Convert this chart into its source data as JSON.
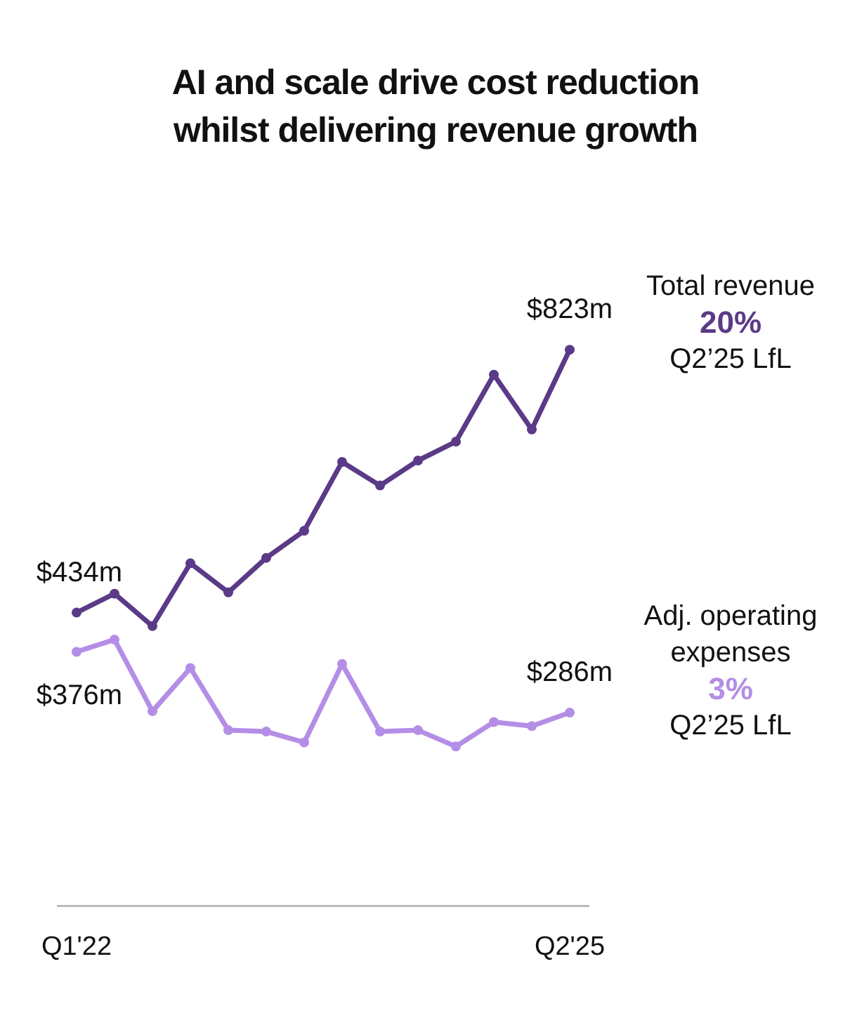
{
  "chart_data": {
    "type": "line",
    "title": "AI and scale drive cost reduction whilst delivering revenue growth",
    "categories": [
      "Q1'22",
      null,
      null,
      null,
      null,
      null,
      null,
      null,
      null,
      null,
      null,
      null,
      null,
      "Q2'25"
    ],
    "series": [
      {
        "name": "Total revenue",
        "color": "#5b3a87",
        "values": [
          434,
          462,
          414,
          507,
          464,
          515,
          555,
          657,
          622,
          659,
          687,
          786,
          705,
          823
        ],
        "value_labels": [
          "$434m",
          null,
          null,
          null,
          null,
          null,
          null,
          null,
          null,
          null,
          null,
          null,
          null,
          "$823m"
        ]
      },
      {
        "name": "Adj. operating expenses",
        "color": "#b48ee6",
        "values": [
          376,
          394,
          288,
          352,
          260,
          258,
          242,
          358,
          258,
          260,
          236,
          272,
          266,
          286
        ],
        "value_labels": [
          "$376m",
          null,
          null,
          null,
          null,
          null,
          null,
          null,
          null,
          null,
          null,
          null,
          null,
          "$286m"
        ]
      }
    ],
    "annotations": [
      "20%",
      "Q2’25 LfL",
      "3%",
      "Q2’25 LfL"
    ],
    "tick_labels": "x",
    "grid": false,
    "legend": false,
    "marker": "circle",
    "line_style": "solid"
  }
}
